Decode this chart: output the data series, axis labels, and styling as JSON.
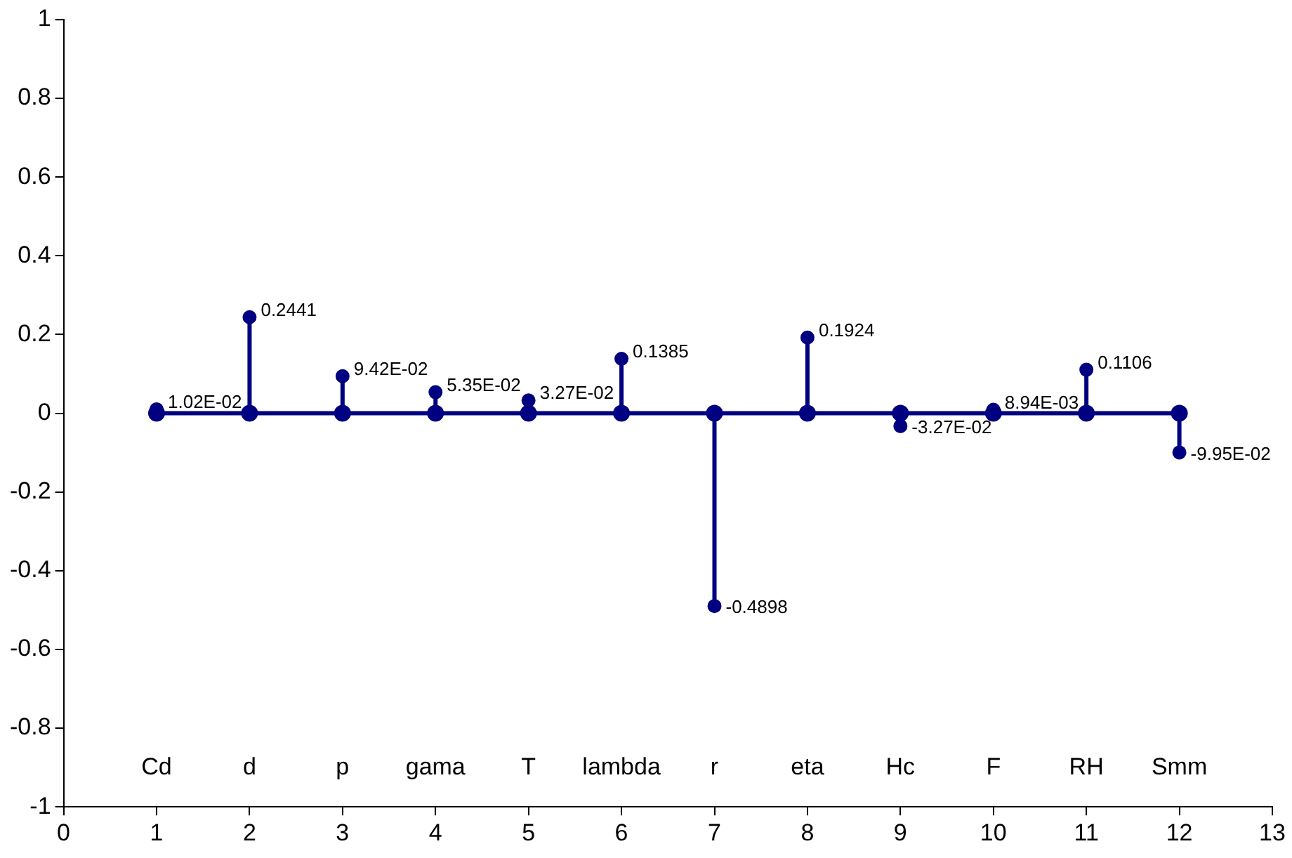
{
  "chart_data": {
    "type": "lollipop",
    "x": [
      1,
      2,
      3,
      4,
      5,
      6,
      7,
      8,
      9,
      10,
      11,
      12
    ],
    "series": [
      {
        "type": "line",
        "color": "#000080",
        "values": [
          0,
          0,
          0,
          0,
          0,
          0,
          0,
          0,
          0,
          0,
          0,
          0
        ]
      },
      {
        "color": "#000080",
        "values": [
          0.0102,
          0.2441,
          0.0942,
          0.0535,
          0.0327,
          0.1385,
          -0.4898,
          0.1924,
          -0.0327,
          0.00894,
          0.1106,
          -0.0995
        ],
        "value_labels": [
          "1.02E-02",
          "0.2441",
          "9.42E-02",
          "5.35E-02",
          "3.27E-02",
          "0.1385",
          "-0.4898",
          "0.1924",
          "-3.27E-02",
          "8.94E-03",
          "0.1106",
          "-9.95E-02"
        ]
      }
    ],
    "marker": "circle",
    "xlim": [
      0,
      13
    ],
    "xticks": [
      0,
      1,
      2,
      3,
      4,
      5,
      6,
      7,
      8,
      9,
      10,
      11,
      12,
      13
    ],
    "ylim": [
      -1,
      1
    ],
    "yticks": [
      -1,
      -0.8,
      -0.6,
      -0.4,
      -0.2,
      0,
      0.2,
      0.4,
      0.6,
      0.8,
      1
    ],
    "annotations": [
      "Cd",
      "d",
      "p",
      "gama",
      "T",
      "lambda",
      "r",
      "eta",
      "Hc",
      "F",
      "RH",
      "Smm"
    ]
  }
}
